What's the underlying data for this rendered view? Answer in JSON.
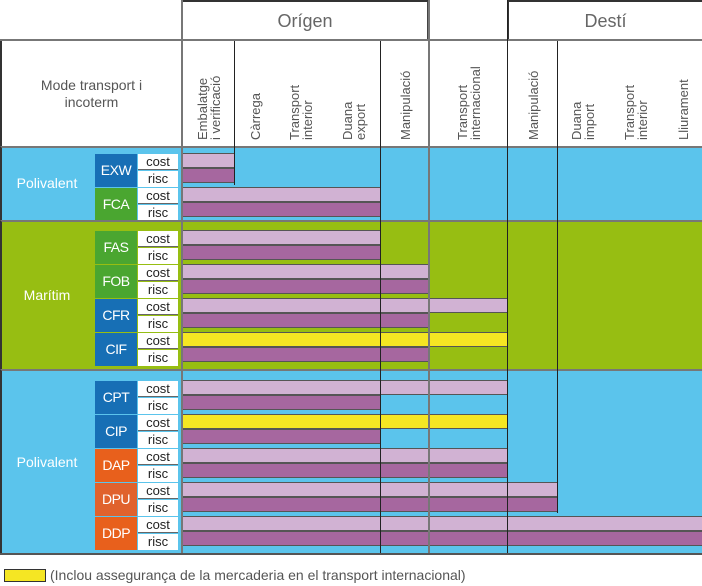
{
  "header": {
    "mode_label": "Mode transport i\nincoterm",
    "groups": [
      {
        "label": "Orígen"
      },
      {
        "label": "Destí"
      }
    ],
    "columns": [
      {
        "label": "Embalatge\ni verificació",
        "group": "Orígen"
      },
      {
        "label": "Càrrega",
        "group": "Orígen"
      },
      {
        "label": "Transport\ninterior",
        "group": "Orígen"
      },
      {
        "label": "Duana\nexport",
        "group": "Orígen"
      },
      {
        "label": "Manipulació",
        "group": "Orígen"
      },
      {
        "label": "Transport\ninternacional",
        "group": ""
      },
      {
        "label": "Manipulació",
        "group": "Destí"
      },
      {
        "label": "Duana\nimport",
        "group": "Destí"
      },
      {
        "label": "Transport\ninterior",
        "group": "Destí"
      },
      {
        "label": "Lliurament",
        "group": "Destí"
      }
    ]
  },
  "row_labels": {
    "cost": "cost",
    "risc": "risc"
  },
  "bands": [
    {
      "label": "Polivalent",
      "color": "#5bc4ec",
      "terms": [
        {
          "code": "EXW",
          "color": "#176fb5",
          "cost_until": 1,
          "risc_until": 1,
          "cost_insurance": false
        },
        {
          "code": "FCA",
          "color": "#4aa630",
          "cost_until": 4,
          "risc_until": 4,
          "cost_insurance": false
        }
      ]
    },
    {
      "label": "Marítim",
      "color": "#97be12",
      "terms": [
        {
          "code": "FAS",
          "color": "#4aa630",
          "cost_until": 4,
          "risc_until": 4,
          "cost_insurance": false
        },
        {
          "code": "FOB",
          "color": "#4aa630",
          "cost_until": 5,
          "risc_until": 5,
          "cost_insurance": false
        },
        {
          "code": "CFR",
          "color": "#176fb5",
          "cost_until": 6,
          "risc_until": 5,
          "cost_insurance": false
        },
        {
          "code": "CIF",
          "color": "#176fb5",
          "cost_until": 6,
          "risc_until": 5,
          "cost_insurance": true
        }
      ]
    },
    {
      "label": "Polivalent",
      "color": "#5bc4ec",
      "terms": [
        {
          "code": "CPT",
          "color": "#176fb5",
          "cost_until": 6,
          "risc_until": 4,
          "cost_insurance": false
        },
        {
          "code": "CIP",
          "color": "#176fb5",
          "cost_until": 6,
          "risc_until": 4,
          "cost_insurance": true
        },
        {
          "code": "DAP",
          "color": "#e8601c",
          "cost_until": 6,
          "risc_until": 6,
          "cost_insurance": false
        },
        {
          "code": "DPU",
          "color": "#e0622d",
          "cost_until": 7,
          "risc_until": 7,
          "cost_insurance": false
        },
        {
          "code": "DDP",
          "color": "#e8601c",
          "cost_until": 10,
          "risc_until": 10,
          "cost_insurance": false
        }
      ]
    }
  ],
  "colors": {
    "cost": "#d1b2d3",
    "risc": "#a6679f",
    "insurance": "#f5e623"
  },
  "legend": {
    "text": "(Inclou assegurança de la mercaderia en el transport internacional)"
  }
}
